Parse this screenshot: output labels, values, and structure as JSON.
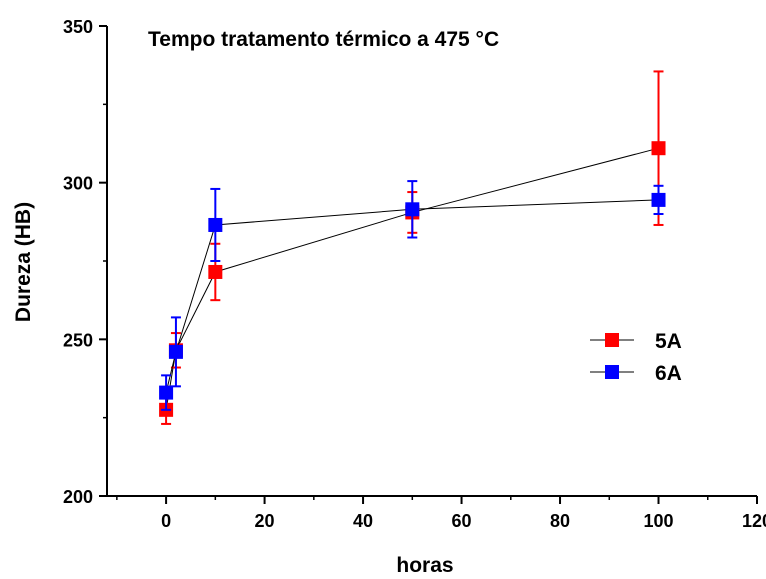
{
  "chart_data": {
    "type": "scatter",
    "title": "Tempo tratamento térmico a 475 °C",
    "xlabel": "horas",
    "ylabel": "Dureza (HB)",
    "xlim": [
      -12,
      120
    ],
    "ylim": [
      200,
      350
    ],
    "xticks": [
      0,
      20,
      40,
      60,
      80,
      100,
      120
    ],
    "yticks": [
      200,
      250,
      300,
      350
    ],
    "grid": false,
    "legend_position": "right-middle",
    "series": [
      {
        "name": "5A",
        "color": "#ff0000",
        "points": [
          {
            "x": 0,
            "y": 227.5,
            "err": 4.5
          },
          {
            "x": 2,
            "y": 246.5,
            "err": 5.5
          },
          {
            "x": 10,
            "y": 271.5,
            "err": 9
          },
          {
            "x": 50,
            "y": 290.5,
            "err": 6.5
          },
          {
            "x": 100,
            "y": 311,
            "err": 24.5
          }
        ]
      },
      {
        "name": "6A",
        "color": "#0000ff",
        "points": [
          {
            "x": 0,
            "y": 233,
            "err": 5.5
          },
          {
            "x": 2,
            "y": 246,
            "err": 11
          },
          {
            "x": 10,
            "y": 286.5,
            "err": 11.5
          },
          {
            "x": 50,
            "y": 291.5,
            "err": 9
          },
          {
            "x": 100,
            "y": 294.5,
            "err": 4.5
          }
        ]
      }
    ]
  }
}
